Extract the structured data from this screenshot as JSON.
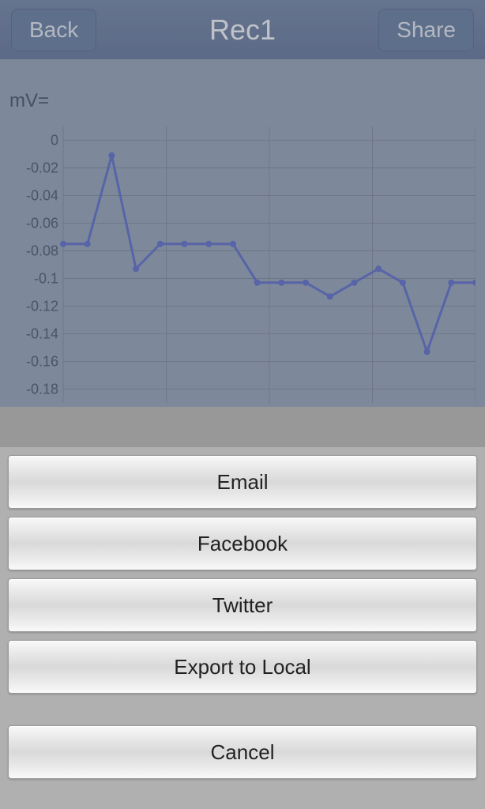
{
  "header": {
    "back_label": "Back",
    "title": "Rec1",
    "share_label": "Share"
  },
  "mv_label": "mV=",
  "chart": {
    "type": "line",
    "x_count": 17,
    "y_ticks": [
      0,
      -0.02,
      -0.04,
      -0.06,
      -0.08,
      -0.1,
      -0.12,
      -0.14,
      -0.16,
      -0.18
    ],
    "ylim": [
      -0.19,
      0.01
    ],
    "values": [
      -0.075,
      -0.075,
      -0.011,
      -0.093,
      -0.075,
      -0.075,
      -0.075,
      -0.075,
      -0.103,
      -0.103,
      -0.103,
      -0.113,
      -0.103,
      -0.093,
      -0.103,
      -0.153,
      -0.103,
      -0.103
    ],
    "line_color": "#5a6bc4",
    "marker_color": "#5a6bc4",
    "marker_radius": 4,
    "line_width": 3,
    "grid_color": "#7a8498",
    "axis_label_color": "#4a5670",
    "axis_label_fontsize": 18,
    "background": "#8e9bb5",
    "vgrid_count": 5
  },
  "sheet": {
    "options": [
      {
        "label": "Email"
      },
      {
        "label": "Facebook"
      },
      {
        "label": "Twitter"
      },
      {
        "label": "Export to Local"
      }
    ],
    "cancel_label": "Cancel"
  }
}
